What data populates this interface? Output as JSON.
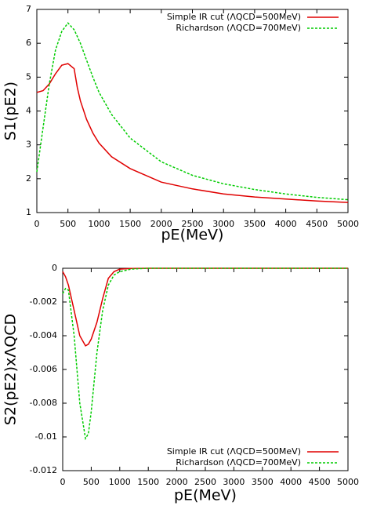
{
  "chart_data": [
    {
      "type": "line",
      "xlabel": "pE(MeV)",
      "ylabel": "S1(pE2)",
      "x": [
        0,
        100,
        200,
        300,
        400,
        500,
        600,
        650,
        700,
        800,
        900,
        1000,
        1200,
        1500,
        2000,
        2500,
        3000,
        3500,
        4000,
        4500,
        5000
      ],
      "series": [
        {
          "name": "Simple IR cut (ΛQCD=500MeV)",
          "color": "#e00000",
          "style": "solid",
          "values": [
            4.55,
            4.6,
            4.8,
            5.1,
            5.35,
            5.4,
            5.25,
            4.7,
            4.3,
            3.75,
            3.35,
            3.05,
            2.65,
            2.3,
            1.9,
            1.7,
            1.55,
            1.46,
            1.4,
            1.34,
            1.3
          ]
        },
        {
          "name": "Richardson (ΛQCD=700MeV)",
          "color": "#00cc00",
          "style": "dashed",
          "values": [
            2.2,
            3.5,
            4.8,
            5.8,
            6.35,
            6.6,
            6.4,
            6.2,
            6.0,
            5.5,
            5.0,
            4.55,
            3.9,
            3.2,
            2.5,
            2.1,
            1.85,
            1.68,
            1.55,
            1.45,
            1.38
          ]
        }
      ],
      "xlim": [
        0,
        5000
      ],
      "xticks": [
        0,
        500,
        1000,
        1500,
        2000,
        2500,
        3000,
        3500,
        4000,
        4500,
        5000
      ],
      "ylim": [
        1,
        7
      ],
      "yticks": [
        1,
        2,
        3,
        4,
        5,
        6,
        7
      ],
      "legend": "upper right"
    },
    {
      "type": "line",
      "xlabel": "pE(MeV)",
      "ylabel": "S2(pE2)xΛQCD",
      "x": [
        0,
        50,
        100,
        200,
        300,
        400,
        450,
        500,
        600,
        700,
        800,
        900,
        1000,
        1200,
        1500,
        5000
      ],
      "series": [
        {
          "name": "Simple IR cut (ΛQCD=500MeV)",
          "color": "#e00000",
          "style": "solid",
          "values": [
            -0.0002,
            -0.0005,
            -0.001,
            -0.0025,
            -0.004,
            -0.0046,
            -0.0045,
            -0.0042,
            -0.0032,
            -0.0018,
            -0.0006,
            -0.0002,
            -5e-05,
            -1e-05,
            0,
            0
          ]
        },
        {
          "name": "Richardson (ΛQCD=700MeV)",
          "color": "#00cc00",
          "style": "dashed",
          "values": [
            -0.0015,
            -0.0012,
            -0.0013,
            -0.004,
            -0.008,
            -0.0101,
            -0.0098,
            -0.0085,
            -0.005,
            -0.0025,
            -0.001,
            -0.0004,
            -0.0002,
            -5e-05,
            0,
            0
          ]
        }
      ],
      "xlim": [
        0,
        5000
      ],
      "xticks": [
        0,
        500,
        1000,
        1500,
        2000,
        2500,
        3000,
        3500,
        4000,
        4500,
        5000
      ],
      "ylim": [
        -0.012,
        0
      ],
      "yticks": [
        -0.012,
        -0.01,
        -0.008,
        -0.006,
        -0.004,
        -0.002,
        0
      ],
      "legend": "lower right"
    }
  ]
}
